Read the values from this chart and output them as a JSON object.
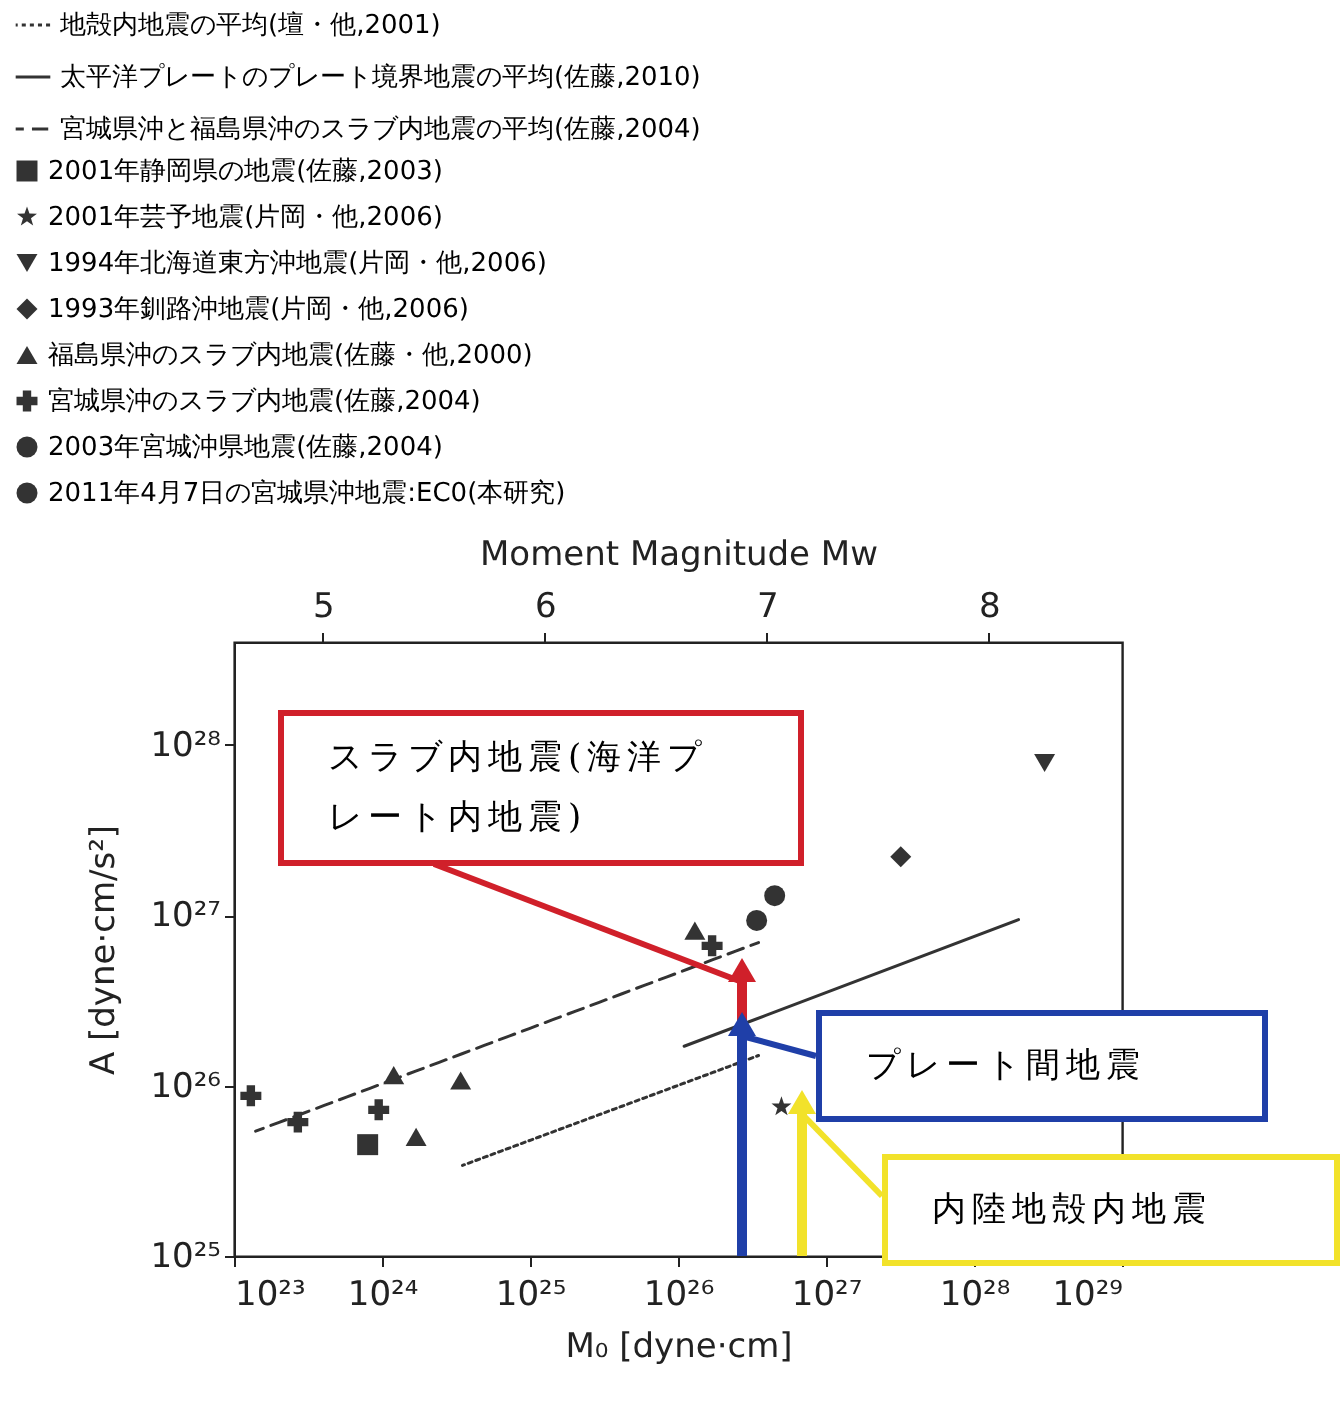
{
  "chart_data": {
    "type": "scatter",
    "xlabel": "M₀ [dyne·cm]",
    "ylabel": "A [dyne·cm/s²]",
    "x2label": "Moment Magnitude Mw",
    "log": "xy",
    "legend": "top left",
    "grid": false,
    "xlim": [
      1e+23,
      1e+29
    ],
    "xticks": [
      {
        "value": 1e+23,
        "label": "10²³"
      },
      {
        "value": 1e+24,
        "label": "10²⁴"
      },
      {
        "value": 1e+25,
        "label": "10²⁵"
      },
      {
        "value": 1e+26,
        "label": "10²⁶"
      },
      {
        "value": 1e+27,
        "label": "10²⁷"
      },
      {
        "value": 1e+28,
        "label": "10²⁸"
      },
      {
        "value": 1e+29,
        "label": "10²⁹"
      }
    ],
    "ylim": [
      1e+25,
      4e+28
    ],
    "yticks": [
      {
        "value": 1e+25,
        "label": "10²⁵"
      },
      {
        "value": 1e+26,
        "label": "10²⁶"
      },
      {
        "value": 1e+27,
        "label": "10²⁷"
      },
      {
        "value": 1e+28,
        "label": "10²⁸"
      }
    ],
    "x2lim": [
      4.6,
      8.6
    ],
    "x2ticks": [
      5,
      6,
      7,
      8
    ],
    "series": [
      {
        "name": "地殻内地震の平均(壇・他,2001)",
        "type": "line",
        "line_style": "dotted",
        "color": "#333333",
        "x": [
          3.5e+24,
          3.5e+26
        ],
        "values": [
          3.4e+25,
          1.5e+26
        ]
      },
      {
        "name": "太平洋プレートのプレート境界地震の平均(佐藤,2010)",
        "type": "line",
        "line_style": "solid",
        "color": "#333333",
        "x": [
          1.1e+26,
          2e+28
        ],
        "values": [
          1.7e+26,
          9.4e+26
        ]
      },
      {
        "name": "宮城県沖と福島県沖のスラブ内地震の平均(佐藤,2004)",
        "type": "line",
        "line_style": "dashed",
        "color": "#333333",
        "x": [
          1.4e+23,
          3.5e+26
        ],
        "values": [
          5.4e+25,
          6.9e+26
        ]
      },
      {
        "name": "2001年静岡県の地震(佐藤,2003)",
        "type": "scatter",
        "marker": "square",
        "color": "#333333",
        "x": [
          8e+23
        ],
        "values": [
          4.5e+25
        ]
      },
      {
        "name": "2001年芸予地震(片岡・他,2006)",
        "type": "scatter",
        "marker": "star",
        "color": "#333333",
        "x": [
          5e+26
        ],
        "values": [
          7.5e+25
        ]
      },
      {
        "name": "1994年北海道東方沖地震(片岡・他,2006)",
        "type": "scatter",
        "marker": "triangle-down",
        "color": "#333333",
        "x": [
          3e+28
        ],
        "values": [
          7.8e+27
        ]
      },
      {
        "name": "1993年釧路沖地震(片岡・他,2006)",
        "type": "scatter",
        "marker": "diamond",
        "color": "#333333",
        "x": [
          3.2e+27
        ],
        "values": [
          2.2e+27
        ]
      },
      {
        "name": "福島県沖のスラブ内地震(佐藤・他,2000)",
        "type": "scatter",
        "marker": "triangle",
        "color": "#333333",
        "x": [
          1.2e+24,
          3.4e+24,
          1.7e+24,
          1.3e+26
        ],
        "values": [
          1.15e+26,
          1.07e+26,
          5e+25,
          8.1e+26
        ]
      },
      {
        "name": "宮城県沖のスラブ内地震(佐藤,2004)",
        "type": "scatter",
        "marker": "cross",
        "color": "#333333",
        "x": [
          1.3e+23,
          2.7e+23,
          9.5e+23,
          1.7e+26
        ],
        "values": [
          8.7e+25,
          6.1e+25,
          7.2e+25,
          6.6e+26
        ]
      },
      {
        "name": "2003年宮城沖県地震(佐藤,2004)",
        "type": "scatter",
        "marker": "circle",
        "color": "#333333",
        "x": [
          3.4e+26
        ],
        "values": [
          9.3e+26
        ]
      },
      {
        "name": "2011年4月7日の宮城県沖地震:EC0(本研究)",
        "type": "scatter",
        "marker": "circle",
        "color": "#333333",
        "x": [
          4.5e+26
        ],
        "values": [
          1.3e+27
        ]
      }
    ],
    "annotations": [
      "スラブ内地震(海洋プレート内地震)",
      "プレート間地震",
      "内陸地殻内地震"
    ]
  }
}
